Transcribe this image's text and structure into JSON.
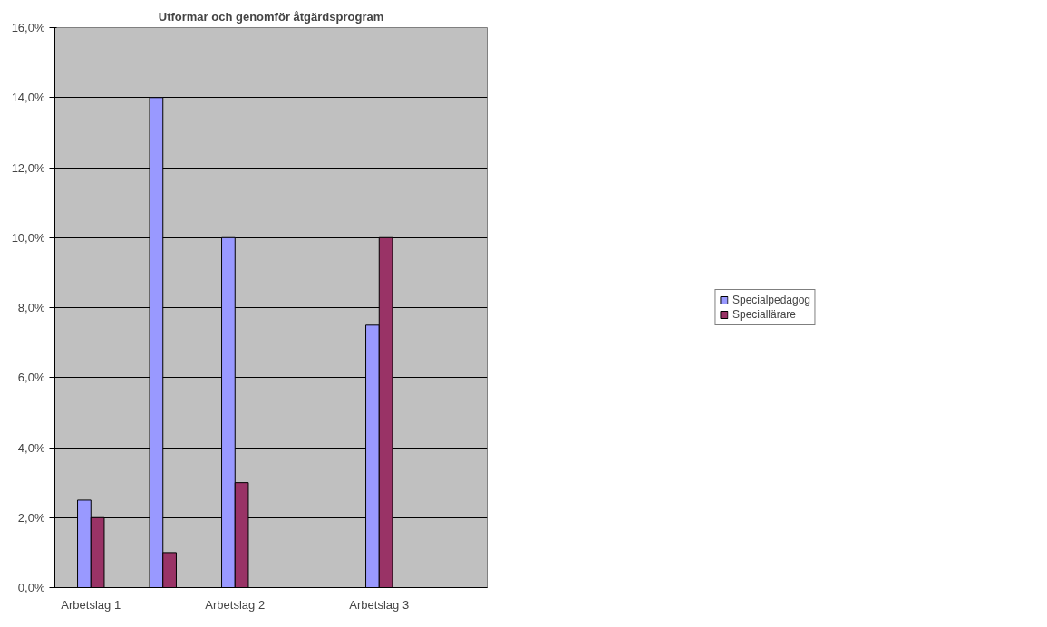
{
  "chart_data": {
    "type": "bar",
    "title": "Utformar och genomför åtgärdsprogram",
    "categories": [
      "Arbetslag 1",
      null,
      "Arbetslag 2",
      null,
      "Arbetslag 3",
      null
    ],
    "series": [
      {
        "name": "Specialpedagog",
        "color": "#9999ff",
        "values": [
          2.5,
          14,
          10,
          null,
          7.5,
          null
        ]
      },
      {
        "name": "Speciallärare",
        "color": "#993366",
        "values": [
          2,
          1,
          3,
          null,
          10,
          null
        ]
      }
    ],
    "ylim": [
      0,
      16
    ],
    "yticks": [
      {
        "value": 0,
        "label": "0,0%"
      },
      {
        "value": 2,
        "label": "2,0%"
      },
      {
        "value": 4,
        "label": "4,0%"
      },
      {
        "value": 6,
        "label": "6,0%"
      },
      {
        "value": 8,
        "label": "8,0%"
      },
      {
        "value": 10,
        "label": "10,0%"
      },
      {
        "value": 12,
        "label": "12,0%"
      },
      {
        "value": 14,
        "label": "14,0%"
      },
      {
        "value": 16,
        "label": "16,0%"
      }
    ],
    "grid": "y",
    "legend": "right"
  }
}
